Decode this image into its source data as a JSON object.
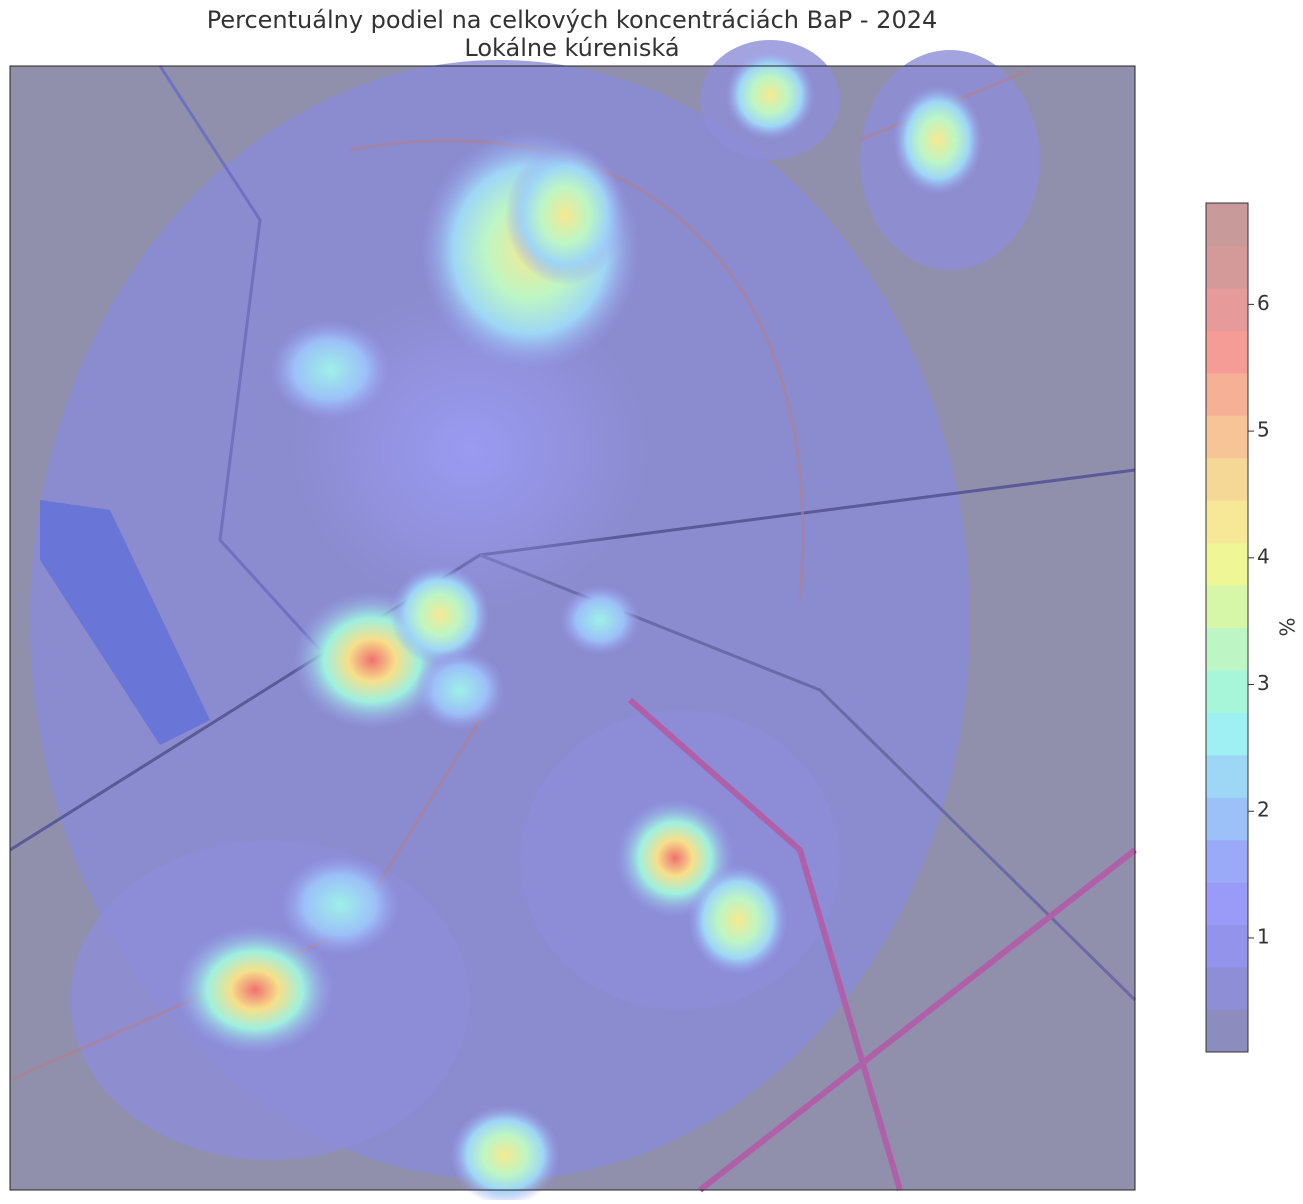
{
  "chart_data": {
    "type": "heatmap",
    "title": "Percentuálny podiel na celkových koncentráciách BaP - 2024",
    "subtitle": "Lokálne kúreniská",
    "colorbar_label": "%",
    "clim": [
      0.1,
      6.8
    ],
    "cticks": [
      1,
      2,
      3,
      4,
      5,
      6
    ],
    "colors": [
      "#8c8cbf",
      "#8e8ed6",
      "#9393ec",
      "#9a9af8",
      "#9aaaf8",
      "#9cc0f8",
      "#9ed6f6",
      "#9ef0f2",
      "#a8f6da",
      "#bdf6c4",
      "#d6f6a8",
      "#eef696",
      "#f6e896",
      "#f6d896",
      "#f6c496",
      "#f6b096",
      "#f69c96",
      "#e69a9a",
      "#d49a9a",
      "#c89a9a"
    ]
  }
}
